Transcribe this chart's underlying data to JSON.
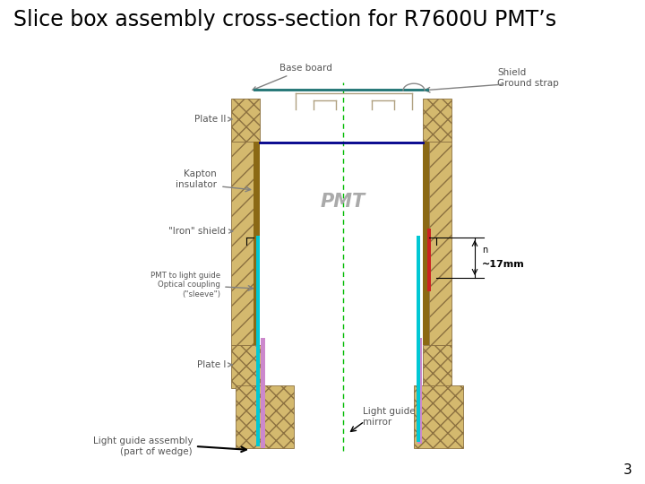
{
  "title": "Slice box assembly cross-section for R7600U PMT’s",
  "title_fontsize": 17,
  "background": "#ffffff",
  "fig_width": 7.2,
  "fig_height": 5.4,
  "dpi": 100,
  "labels": {
    "base_board": "Base board",
    "shield_ground": "Shield\nGround strap",
    "plate_II": "Plate II",
    "kapton": "Kapton\ninsulator",
    "iron_shield": "\"Iron\" shield",
    "pmt_label": "PMT",
    "pmt_coupling": "PMT to light guide\nOptical coupling\n(\"sleeve\")",
    "plate_I": "Plate I",
    "light_guide_mirror": "Light guide\nmirror",
    "light_guide_assembly": "Light guide assembly\n(part of wedge)",
    "dimension": "~17mm",
    "n_label": "n",
    "page_num": "3"
  },
  "colors": {
    "hatch_fill": "#d4b96e",
    "hatch_edge": "#8B7040",
    "kapton_wall": "#8B6914",
    "blue_top": "#00008B",
    "cyan_rod": "#00c8d4",
    "green_center": "#00bb00",
    "purple_bottom": "#cc88cc",
    "red_shield": "#cc2222",
    "gray_arrow": "#808080",
    "black": "#000000",
    "label_color": "#555555",
    "pmt_text_color": "#aaaaaa",
    "teal_board": "#2a7a7a"
  }
}
